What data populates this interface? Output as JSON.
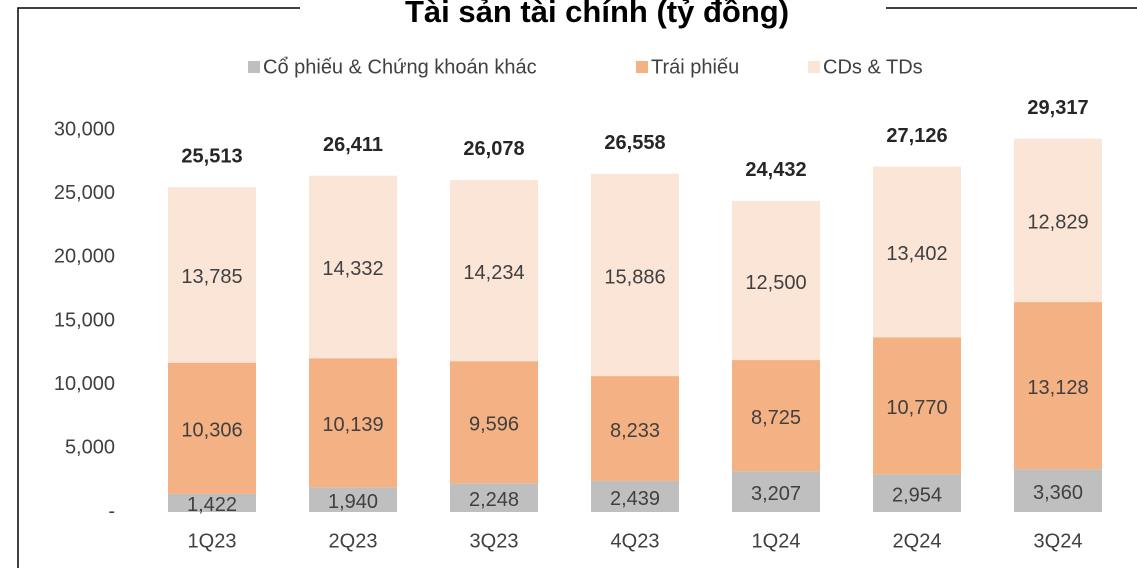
{
  "chart_data": {
    "type": "stacked-bar",
    "title": "Tài sản tài chính (tỷ đồng)",
    "categories": [
      "1Q23",
      "2Q23",
      "3Q23",
      "4Q23",
      "1Q24",
      "2Q24",
      "3Q24"
    ],
    "series": [
      {
        "name": "Cổ phiếu & Chứng khoán khác",
        "color": "#bfbfbf",
        "values": [
          1422,
          1940,
          2248,
          2439,
          3207,
          2954,
          3360
        ],
        "value_labels": [
          "1,422",
          "1,940",
          "2,248",
          "2,439",
          "3,207",
          "2,954",
          "3,360"
        ]
      },
      {
        "name": "Trái phiếu",
        "color": "#f4b183",
        "values": [
          10306,
          10139,
          9596,
          8233,
          8725,
          10770,
          13128
        ],
        "value_labels": [
          "10,306",
          "10,139",
          "9,596",
          "8,233",
          "8,725",
          "10,770",
          "13,128"
        ]
      },
      {
        "name": "CDs & TDs",
        "color": "#fbe5d6",
        "values": [
          13785,
          14332,
          14234,
          15886,
          12500,
          13402,
          12829
        ],
        "value_labels": [
          "13,785",
          "14,332",
          "14,234",
          "15,886",
          "12,500",
          "13,402",
          "12,829"
        ]
      }
    ],
    "totals": [
      25513,
      26411,
      26078,
      26558,
      24432,
      27126,
      29317
    ],
    "total_labels": [
      "25,513",
      "26,411",
      "26,078",
      "26,558",
      "24,432",
      "27,126",
      "29,317"
    ],
    "ylim": [
      0,
      30000
    ],
    "yticks": [
      {
        "value": 0,
        "label": "-"
      },
      {
        "value": 5000,
        "label": "5,000"
      },
      {
        "value": 10000,
        "label": "10,000"
      },
      {
        "value": 15000,
        "label": "15,000"
      },
      {
        "value": 20000,
        "label": "20,000"
      },
      {
        "value": 25000,
        "label": "25,000"
      },
      {
        "value": 30000,
        "label": "30,000"
      }
    ],
    "grid": false,
    "legend": "top"
  }
}
